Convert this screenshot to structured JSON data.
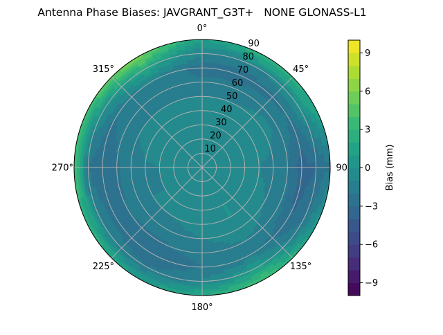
{
  "chart_data": {
    "type": "heatmap",
    "projection": "polar",
    "title": "Antenna Phase Biases: JAVGRANT_G3T+   NONE GLONASS-L1",
    "theta_direction": "clockwise",
    "theta_zero": "top",
    "theta_tick_labels": [
      "0°",
      "45°",
      "90",
      "135°",
      "180°",
      "225°",
      "270°",
      "315°"
    ],
    "theta_ticks": [
      0,
      45,
      90,
      135,
      180,
      225,
      270,
      315
    ],
    "r_ticks": [
      10,
      20,
      30,
      40,
      50,
      60,
      70,
      80,
      90
    ],
    "r_tick_labels": [
      "10",
      "20",
      "30",
      "40",
      "50",
      "60",
      "70",
      "80",
      "90"
    ],
    "rlim": [
      0,
      90
    ],
    "grid": true,
    "colormap": "viridis",
    "colorbar": {
      "label": "Bias (mm)",
      "range": [
        -10,
        10
      ],
      "levels_step": 1,
      "ticks": [
        -9,
        -6,
        -3,
        0,
        3,
        6,
        9
      ],
      "tick_labels": [
        "−9",
        "−6",
        "−3",
        "0",
        "3",
        "6",
        "9"
      ]
    },
    "azimuth": [
      0,
      30,
      60,
      90,
      120,
      150,
      180,
      210,
      240,
      270,
      300,
      330
    ],
    "zenith": [
      0,
      10,
      20,
      30,
      40,
      50,
      60,
      70,
      80,
      90
    ],
    "values": [
      [
        0,
        0,
        0,
        0,
        0,
        0,
        0,
        0,
        0,
        0,
        0,
        0
      ],
      [
        -0.5,
        -0.5,
        -0.5,
        -0.5,
        -0.5,
        -0.5,
        -0.5,
        -0.5,
        -0.5,
        -0.5,
        -0.5,
        -0.5
      ],
      [
        -1,
        -1,
        -0.8,
        -1,
        -1,
        -0.8,
        -1,
        -1,
        -1,
        -1,
        -1,
        -1
      ],
      [
        -1,
        -0.5,
        -0.5,
        -1,
        -1,
        0,
        -0.5,
        -1,
        -1,
        -1,
        -0.5,
        -1
      ],
      [
        -0.5,
        -0.5,
        0,
        -1,
        -0.5,
        0,
        -0.5,
        -1,
        -1,
        -1.2,
        -0.5,
        -0.5
      ],
      [
        -1,
        -1,
        -0.5,
        -1.5,
        -1,
        -0.5,
        -1,
        -1.5,
        -1.5,
        -1.5,
        -1,
        -1
      ],
      [
        -1.8,
        -1.5,
        -1.2,
        -2,
        -1.5,
        -1,
        -1.5,
        -2.2,
        -2,
        -2.2,
        -1.5,
        -1.2
      ],
      [
        -2.5,
        -2.5,
        -2,
        -3.5,
        -3,
        -1.5,
        -2,
        -3,
        -2.5,
        -3,
        -2,
        -1
      ],
      [
        -1,
        -1,
        0,
        -3,
        -2,
        1,
        -1,
        -2,
        -1,
        -2,
        0,
        2
      ],
      [
        1,
        3,
        2,
        -2,
        1,
        4,
        2,
        1,
        3,
        4,
        4,
        6
      ]
    ]
  }
}
